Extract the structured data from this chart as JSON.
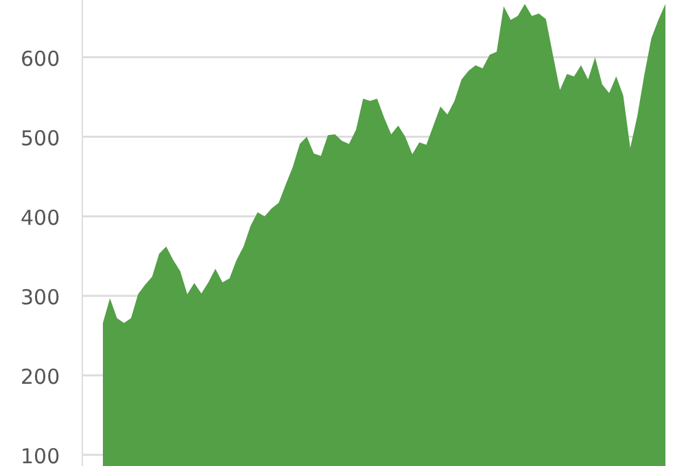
{
  "chart_data": {
    "type": "area",
    "categories": [
      null,
      null,
      null,
      null,
      null,
      null,
      null,
      null,
      null,
      null,
      null,
      null,
      null,
      null,
      null,
      null,
      null,
      null,
      null,
      null,
      null,
      null,
      null,
      null,
      null,
      null,
      null,
      null,
      null,
      null,
      null,
      null,
      null,
      null,
      null,
      null,
      null,
      null,
      null,
      null,
      null,
      null,
      null,
      null,
      null,
      null,
      null,
      null,
      null,
      null,
      null,
      null,
      null,
      null,
      null,
      null,
      null,
      null,
      null,
      null,
      null,
      null,
      null,
      null,
      null,
      null,
      null,
      null,
      null,
      null,
      null,
      null,
      null,
      null,
      null,
      null,
      null,
      null,
      null,
      null,
      null
    ],
    "series": [
      {
        "color": "#53a046",
        "values": [
          266,
          297,
          272,
          266,
          272,
          302,
          314,
          324,
          353,
          362,
          345,
          331,
          302,
          316,
          303,
          317,
          334,
          317,
          322,
          345,
          362,
          388,
          405,
          400,
          410,
          417,
          440,
          462,
          491,
          500,
          479,
          476,
          502,
          503,
          495,
          491,
          509,
          548,
          545,
          548,
          524,
          503,
          514,
          500,
          478,
          493,
          490,
          514,
          538,
          528,
          545,
          572,
          583,
          590,
          586,
          603,
          607,
          664,
          647,
          652,
          667,
          652,
          655,
          648,
          603,
          559,
          579,
          576,
          590,
          572,
          600,
          566,
          555,
          576,
          552,
          486,
          526,
          578,
          624,
          647,
          667
        ]
      }
    ],
    "ylim": [
      86,
      672
    ],
    "yticks": [
      100,
      200,
      300,
      400,
      500,
      600
    ],
    "grid": "y"
  }
}
